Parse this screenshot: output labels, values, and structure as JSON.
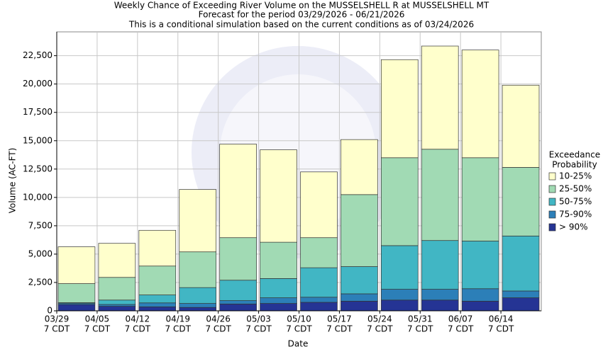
{
  "chart_data": {
    "type": "stacked-bar",
    "title": "Weekly Chance of Exceeding River Volume on the MUSSELSHELL R at MUSSELSHELL MT",
    "subtitles": [
      "Forecast for the period 03/29/2026 - 06/21/2026",
      "This is a conditional simulation based on the current conditions as of 03/24/2026"
    ],
    "x_label": "Date",
    "y_label": "Volume (AC-FT)",
    "categories": [
      "03/29",
      "04/05",
      "04/12",
      "04/19",
      "04/26",
      "05/03",
      "05/10",
      "05/17",
      "05/24",
      "05/31",
      "06/07",
      "06/14"
    ],
    "category_sublabel": "7 CDT",
    "legend_title": [
      "Exceedance",
      "Probability"
    ],
    "series": [
      {
        "name": "> 90%",
        "color": "#253494",
        "values": [
          550,
          400,
          350,
          300,
          600,
          650,
          750,
          850,
          950,
          950,
          850,
          1150
        ]
      },
      {
        "name": "75-90%",
        "color": "#2c7fb8",
        "values": [
          100,
          160,
          350,
          350,
          300,
          500,
          450,
          650,
          950,
          950,
          1100,
          600
        ]
      },
      {
        "name": "50-75%",
        "color": "#41b6c4",
        "values": [
          70,
          390,
          700,
          1400,
          1800,
          1700,
          2600,
          2400,
          3850,
          4300,
          4200,
          4850
        ]
      },
      {
        "name": "25-50%",
        "color": "#a1dab4",
        "values": [
          1680,
          2000,
          2550,
          3150,
          3750,
          3200,
          2650,
          6350,
          7750,
          8050,
          7350,
          6050
        ]
      },
      {
        "name": "10-25%",
        "color": "#ffffcc",
        "values": [
          3250,
          3000,
          3150,
          5500,
          8250,
          8150,
          5800,
          4850,
          8650,
          9100,
          9500,
          7250
        ]
      }
    ],
    "ylim": [
      0,
      24600
    ],
    "yticks": [
      0,
      {
        "value": 2500,
        "label": "2,500"
      },
      {
        "value": 5000,
        "label": "5,000"
      },
      {
        "value": 7500,
        "label": "7,500"
      },
      {
        "value": 10000,
        "label": "10,000"
      },
      {
        "value": 12500,
        "label": "12,500"
      },
      {
        "value": 15000,
        "label": "15,000"
      },
      {
        "value": 17500,
        "label": "17,500"
      },
      {
        "value": 20000,
        "label": "20,000"
      },
      {
        "value": 22500,
        "label": "22,500"
      }
    ],
    "grid": true
  }
}
